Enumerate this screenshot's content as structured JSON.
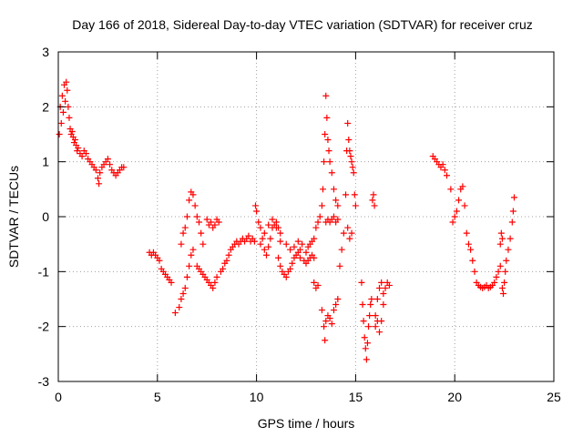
{
  "chart_data": {
    "type": "scatter",
    "title": "Day 166 of 2018, Sidereal Day-to-day VTEC variation (SDTVAR) for receiver cruz",
    "xlabel": "GPS time / hours",
    "ylabel": "SDTVAR / TECUs",
    "xlim": [
      0,
      25
    ],
    "ylim": [
      -3,
      3
    ],
    "xticks": [
      0,
      5,
      10,
      15,
      20,
      25
    ],
    "yticks": [
      -3,
      -2,
      -1,
      0,
      1,
      2,
      3
    ],
    "grid": true,
    "marker": "+",
    "series_color": "#ff0000",
    "series": [
      {
        "name": "SDTVAR",
        "points": [
          [
            0.05,
            1.5
          ],
          [
            0.1,
            2.0
          ],
          [
            0.15,
            1.7
          ],
          [
            0.2,
            2.2
          ],
          [
            0.25,
            1.9
          ],
          [
            0.3,
            2.4
          ],
          [
            0.35,
            2.1
          ],
          [
            0.4,
            2.45
          ],
          [
            0.45,
            2.3
          ],
          [
            0.5,
            2.0
          ],
          [
            0.55,
            1.8
          ],
          [
            0.6,
            1.6
          ],
          [
            0.65,
            1.5
          ],
          [
            0.7,
            1.55
          ],
          [
            0.75,
            1.45
          ],
          [
            0.8,
            1.35
          ],
          [
            0.85,
            1.4
          ],
          [
            0.9,
            1.3
          ],
          [
            0.95,
            1.2
          ],
          [
            1.0,
            1.25
          ],
          [
            1.1,
            1.15
          ],
          [
            1.2,
            1.1
          ],
          [
            1.3,
            1.2
          ],
          [
            1.4,
            1.15
          ],
          [
            1.5,
            1.05
          ],
          [
            1.6,
            1.0
          ],
          [
            1.7,
            0.95
          ],
          [
            1.8,
            0.9
          ],
          [
            1.9,
            0.85
          ],
          [
            2.0,
            0.7
          ],
          [
            2.05,
            0.6
          ],
          [
            2.1,
            0.8
          ],
          [
            2.2,
            0.9
          ],
          [
            2.3,
            0.95
          ],
          [
            2.4,
            1.0
          ],
          [
            2.5,
            1.05
          ],
          [
            2.6,
            0.95
          ],
          [
            2.7,
            0.85
          ],
          [
            2.8,
            0.8
          ],
          [
            2.9,
            0.75
          ],
          [
            3.0,
            0.8
          ],
          [
            3.1,
            0.85
          ],
          [
            3.2,
            0.9
          ],
          [
            3.3,
            0.9
          ],
          [
            4.6,
            -0.65
          ],
          [
            4.7,
            -0.7
          ],
          [
            4.8,
            -0.65
          ],
          [
            4.9,
            -0.7
          ],
          [
            5.0,
            -0.75
          ],
          [
            5.1,
            -0.8
          ],
          [
            5.2,
            -0.95
          ],
          [
            5.3,
            -1.0
          ],
          [
            5.4,
            -1.05
          ],
          [
            5.5,
            -1.1
          ],
          [
            5.6,
            -1.15
          ],
          [
            5.7,
            -1.2
          ],
          [
            5.9,
            -1.75
          ],
          [
            6.1,
            -1.65
          ],
          [
            6.2,
            -1.5
          ],
          [
            6.3,
            -1.4
          ],
          [
            6.4,
            -1.3
          ],
          [
            6.5,
            -1.1
          ],
          [
            6.6,
            -0.9
          ],
          [
            6.7,
            -0.7
          ],
          [
            6.8,
            -0.6
          ],
          [
            6.2,
            -0.5
          ],
          [
            6.3,
            -0.3
          ],
          [
            6.4,
            -0.2
          ],
          [
            6.5,
            0.0
          ],
          [
            6.6,
            0.3
          ],
          [
            6.7,
            0.45
          ],
          [
            6.8,
            0.4
          ],
          [
            6.9,
            0.2
          ],
          [
            7.0,
            0.0
          ],
          [
            7.1,
            -0.1
          ],
          [
            7.2,
            -0.3
          ],
          [
            7.3,
            -0.5
          ],
          [
            7.0,
            -0.9
          ],
          [
            7.1,
            -0.95
          ],
          [
            7.2,
            -1.0
          ],
          [
            7.3,
            -1.05
          ],
          [
            7.4,
            -1.1
          ],
          [
            7.5,
            -1.15
          ],
          [
            7.6,
            -1.2
          ],
          [
            7.7,
            -1.25
          ],
          [
            7.8,
            -1.3
          ],
          [
            7.9,
            -1.2
          ],
          [
            8.0,
            -1.1
          ],
          [
            7.5,
            -0.05
          ],
          [
            7.6,
            -0.15
          ],
          [
            7.7,
            -0.1
          ],
          [
            7.8,
            -0.2
          ],
          [
            7.9,
            -0.15
          ],
          [
            8.0,
            -0.05
          ],
          [
            8.1,
            -0.1
          ],
          [
            8.2,
            -1.0
          ],
          [
            8.3,
            -0.95
          ],
          [
            8.4,
            -0.85
          ],
          [
            8.5,
            -0.8
          ],
          [
            8.6,
            -0.7
          ],
          [
            8.7,
            -0.6
          ],
          [
            8.8,
            -0.55
          ],
          [
            8.9,
            -0.5
          ],
          [
            9.0,
            -0.45
          ],
          [
            9.1,
            -0.5
          ],
          [
            9.2,
            -0.45
          ],
          [
            9.3,
            -0.4
          ],
          [
            9.4,
            -0.45
          ],
          [
            9.5,
            -0.4
          ],
          [
            9.6,
            -0.35
          ],
          [
            9.7,
            -0.45
          ],
          [
            9.8,
            -0.4
          ],
          [
            9.9,
            -0.45
          ],
          [
            9.95,
            0.2
          ],
          [
            10.0,
            0.1
          ],
          [
            10.1,
            -0.1
          ],
          [
            10.2,
            -0.2
          ],
          [
            10.3,
            -0.4
          ],
          [
            10.4,
            -0.6
          ],
          [
            10.5,
            -0.7
          ],
          [
            10.6,
            -0.55
          ],
          [
            10.7,
            -0.4
          ],
          [
            10.8,
            -0.2
          ],
          [
            10.9,
            -0.15
          ],
          [
            11.0,
            -0.1
          ],
          [
            11.1,
            -0.2
          ],
          [
            11.2,
            -0.3
          ],
          [
            10.2,
            -0.5
          ],
          [
            10.4,
            -0.3
          ],
          [
            10.6,
            -0.15
          ],
          [
            10.8,
            -0.05
          ],
          [
            11.0,
            -0.2
          ],
          [
            11.2,
            -0.45
          ],
          [
            11.1,
            -0.75
          ],
          [
            11.2,
            -0.9
          ],
          [
            11.3,
            -1.0
          ],
          [
            11.4,
            -1.05
          ],
          [
            11.5,
            -1.1
          ],
          [
            11.6,
            -1.0
          ],
          [
            11.7,
            -0.95
          ],
          [
            11.8,
            -0.85
          ],
          [
            11.9,
            -0.75
          ],
          [
            12.0,
            -0.7
          ],
          [
            12.1,
            -0.65
          ],
          [
            12.2,
            -0.6
          ],
          [
            12.3,
            -0.5
          ],
          [
            11.5,
            -0.5
          ],
          [
            11.7,
            -0.6
          ],
          [
            11.9,
            -0.55
          ],
          [
            12.1,
            -0.45
          ],
          [
            12.2,
            -0.75
          ],
          [
            12.4,
            -0.8
          ],
          [
            12.5,
            -0.65
          ],
          [
            12.6,
            -0.55
          ],
          [
            12.7,
            -0.5
          ],
          [
            12.8,
            -0.45
          ],
          [
            12.9,
            -0.4
          ],
          [
            12.5,
            -0.85
          ],
          [
            12.6,
            -0.8
          ],
          [
            12.7,
            -0.75
          ],
          [
            12.8,
            -0.7
          ],
          [
            12.9,
            -0.75
          ],
          [
            12.9,
            -1.2
          ],
          [
            13.0,
            -1.3
          ],
          [
            13.1,
            -1.25
          ],
          [
            13.0,
            -0.2
          ],
          [
            13.1,
            -0.1
          ],
          [
            13.2,
            0.0
          ],
          [
            13.3,
            0.2
          ],
          [
            13.35,
            0.5
          ],
          [
            13.4,
            1.0
          ],
          [
            13.45,
            1.5
          ],
          [
            13.5,
            2.2
          ],
          [
            13.55,
            1.8
          ],
          [
            13.6,
            1.4
          ],
          [
            13.65,
            1.2
          ],
          [
            13.7,
            1.0
          ],
          [
            13.8,
            0.8
          ],
          [
            13.9,
            0.5
          ],
          [
            14.0,
            0.3
          ],
          [
            14.1,
            0.2
          ],
          [
            13.3,
            -1.7
          ],
          [
            13.4,
            -2.0
          ],
          [
            13.45,
            -2.25
          ],
          [
            13.5,
            -1.9
          ],
          [
            13.6,
            -1.8
          ],
          [
            13.7,
            -1.85
          ],
          [
            13.8,
            -1.95
          ],
          [
            13.9,
            -1.7
          ],
          [
            14.0,
            -1.6
          ],
          [
            14.1,
            -1.5
          ],
          [
            13.5,
            -0.1
          ],
          [
            13.6,
            -0.05
          ],
          [
            13.7,
            -0.1
          ],
          [
            13.8,
            -0.05
          ],
          [
            13.9,
            0.0
          ],
          [
            14.0,
            -0.1
          ],
          [
            14.1,
            -0.05
          ],
          [
            14.2,
            -0.9
          ],
          [
            14.3,
            -0.6
          ],
          [
            14.4,
            -0.3
          ],
          [
            14.5,
            0.4
          ],
          [
            14.55,
            1.2
          ],
          [
            14.6,
            1.7
          ],
          [
            14.65,
            1.4
          ],
          [
            14.7,
            1.2
          ],
          [
            14.75,
            1.1
          ],
          [
            14.8,
            1.0
          ],
          [
            14.85,
            0.9
          ],
          [
            14.9,
            0.8
          ],
          [
            14.95,
            0.4
          ],
          [
            15.0,
            0.2
          ],
          [
            14.6,
            -0.2
          ],
          [
            14.7,
            -0.4
          ],
          [
            14.8,
            -0.3
          ],
          [
            15.3,
            -1.2
          ],
          [
            15.35,
            -1.6
          ],
          [
            15.4,
            -1.9
          ],
          [
            15.45,
            -2.2
          ],
          [
            15.5,
            -2.4
          ],
          [
            15.55,
            -2.6
          ],
          [
            15.6,
            -2.3
          ],
          [
            15.65,
            -2.0
          ],
          [
            15.7,
            -1.8
          ],
          [
            15.75,
            -1.6
          ],
          [
            15.8,
            -1.5
          ],
          [
            15.85,
            0.3
          ],
          [
            15.9,
            0.4
          ],
          [
            15.95,
            0.2
          ],
          [
            16.0,
            -1.8
          ],
          [
            16.1,
            -1.5
          ],
          [
            16.2,
            -1.3
          ],
          [
            16.3,
            -1.2
          ],
          [
            16.4,
            -1.4
          ],
          [
            16.5,
            -1.3
          ],
          [
            16.6,
            -1.2
          ],
          [
            16.7,
            -1.25
          ],
          [
            16.0,
            -2.0
          ],
          [
            16.1,
            -1.9
          ],
          [
            16.2,
            -2.1
          ],
          [
            16.3,
            -1.9
          ],
          [
            16.4,
            -1.6
          ],
          [
            18.9,
            1.1
          ],
          [
            19.0,
            1.05
          ],
          [
            19.1,
            1.0
          ],
          [
            19.2,
            0.95
          ],
          [
            19.3,
            0.9
          ],
          [
            19.4,
            0.95
          ],
          [
            19.5,
            0.85
          ],
          [
            19.6,
            0.75
          ],
          [
            19.8,
            0.5
          ],
          [
            19.9,
            -0.1
          ],
          [
            20.0,
            0.0
          ],
          [
            20.1,
            0.1
          ],
          [
            20.2,
            0.3
          ],
          [
            20.3,
            0.5
          ],
          [
            20.4,
            0.55
          ],
          [
            20.5,
            0.2
          ],
          [
            20.6,
            -0.3
          ],
          [
            20.7,
            -0.5
          ],
          [
            20.8,
            -0.6
          ],
          [
            20.9,
            -0.8
          ],
          [
            21.0,
            -1.0
          ],
          [
            21.1,
            -1.2
          ],
          [
            21.2,
            -1.25
          ],
          [
            21.3,
            -1.28
          ],
          [
            21.4,
            -1.3
          ],
          [
            21.5,
            -1.28
          ],
          [
            21.6,
            -1.25
          ],
          [
            21.7,
            -1.3
          ],
          [
            21.8,
            -1.28
          ],
          [
            21.9,
            -1.25
          ],
          [
            22.0,
            -1.2
          ],
          [
            22.1,
            -1.1
          ],
          [
            22.2,
            -1.0
          ],
          [
            22.3,
            -0.9
          ],
          [
            22.4,
            -1.3
          ],
          [
            22.45,
            -1.4
          ],
          [
            22.5,
            -1.2
          ],
          [
            22.55,
            -1.0
          ],
          [
            22.6,
            -0.8
          ],
          [
            22.7,
            -0.6
          ],
          [
            22.8,
            -0.4
          ],
          [
            22.9,
            -0.1
          ],
          [
            22.95,
            0.1
          ],
          [
            23.0,
            0.35
          ],
          [
            22.3,
            -0.5
          ],
          [
            22.35,
            -0.3
          ],
          [
            22.4,
            -0.4
          ]
        ]
      }
    ]
  }
}
